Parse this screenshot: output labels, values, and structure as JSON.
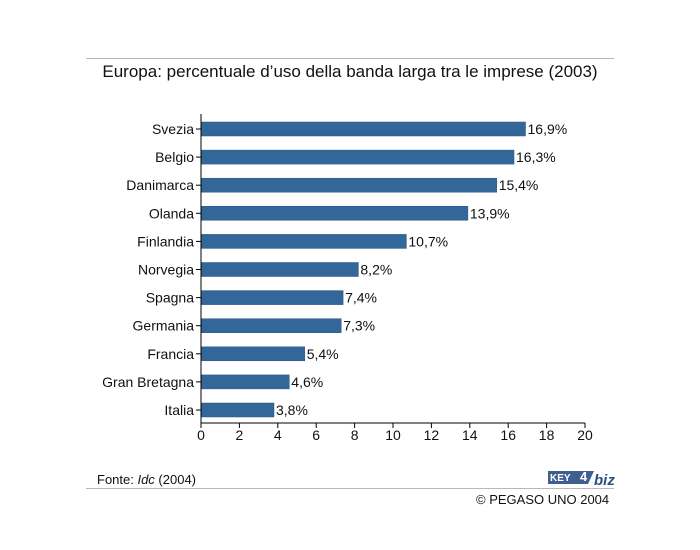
{
  "chart_data": {
    "type": "bar",
    "orientation": "horizontal",
    "title": "Europa: percentuale d’uso della banda larga tra le imprese (2003)",
    "categories": [
      "Svezia",
      "Belgio",
      "Danimarca",
      "Olanda",
      "Finlandia",
      "Norvegia",
      "Spagna",
      "Germania",
      "Francia",
      "Gran Bretagna",
      "Italia"
    ],
    "values": [
      16.9,
      16.3,
      15.4,
      13.9,
      10.7,
      8.2,
      7.4,
      7.3,
      5.4,
      4.6,
      3.8
    ],
    "value_labels": [
      "16,9%",
      "16,3%",
      "15,4%",
      "13,9%",
      "10,7%",
      "8,2%",
      "7,4%",
      "7,3%",
      "5,4%",
      "4,6%",
      "3,8%"
    ],
    "xlim": [
      0,
      20
    ],
    "xticks": [
      0,
      2,
      4,
      6,
      8,
      10,
      12,
      14,
      16,
      18,
      20
    ],
    "xlabel": "",
    "ylabel": "",
    "grid": false,
    "bar_color": "#336699"
  },
  "footer": {
    "source_prefix": "Fonte: ",
    "source_name": "Idc",
    "source_suffix": " (2004)",
    "logo_key": "KEY",
    "logo_number": "4",
    "logo_biz": "biz",
    "copyright": "© PEGASO UNO 2004"
  }
}
